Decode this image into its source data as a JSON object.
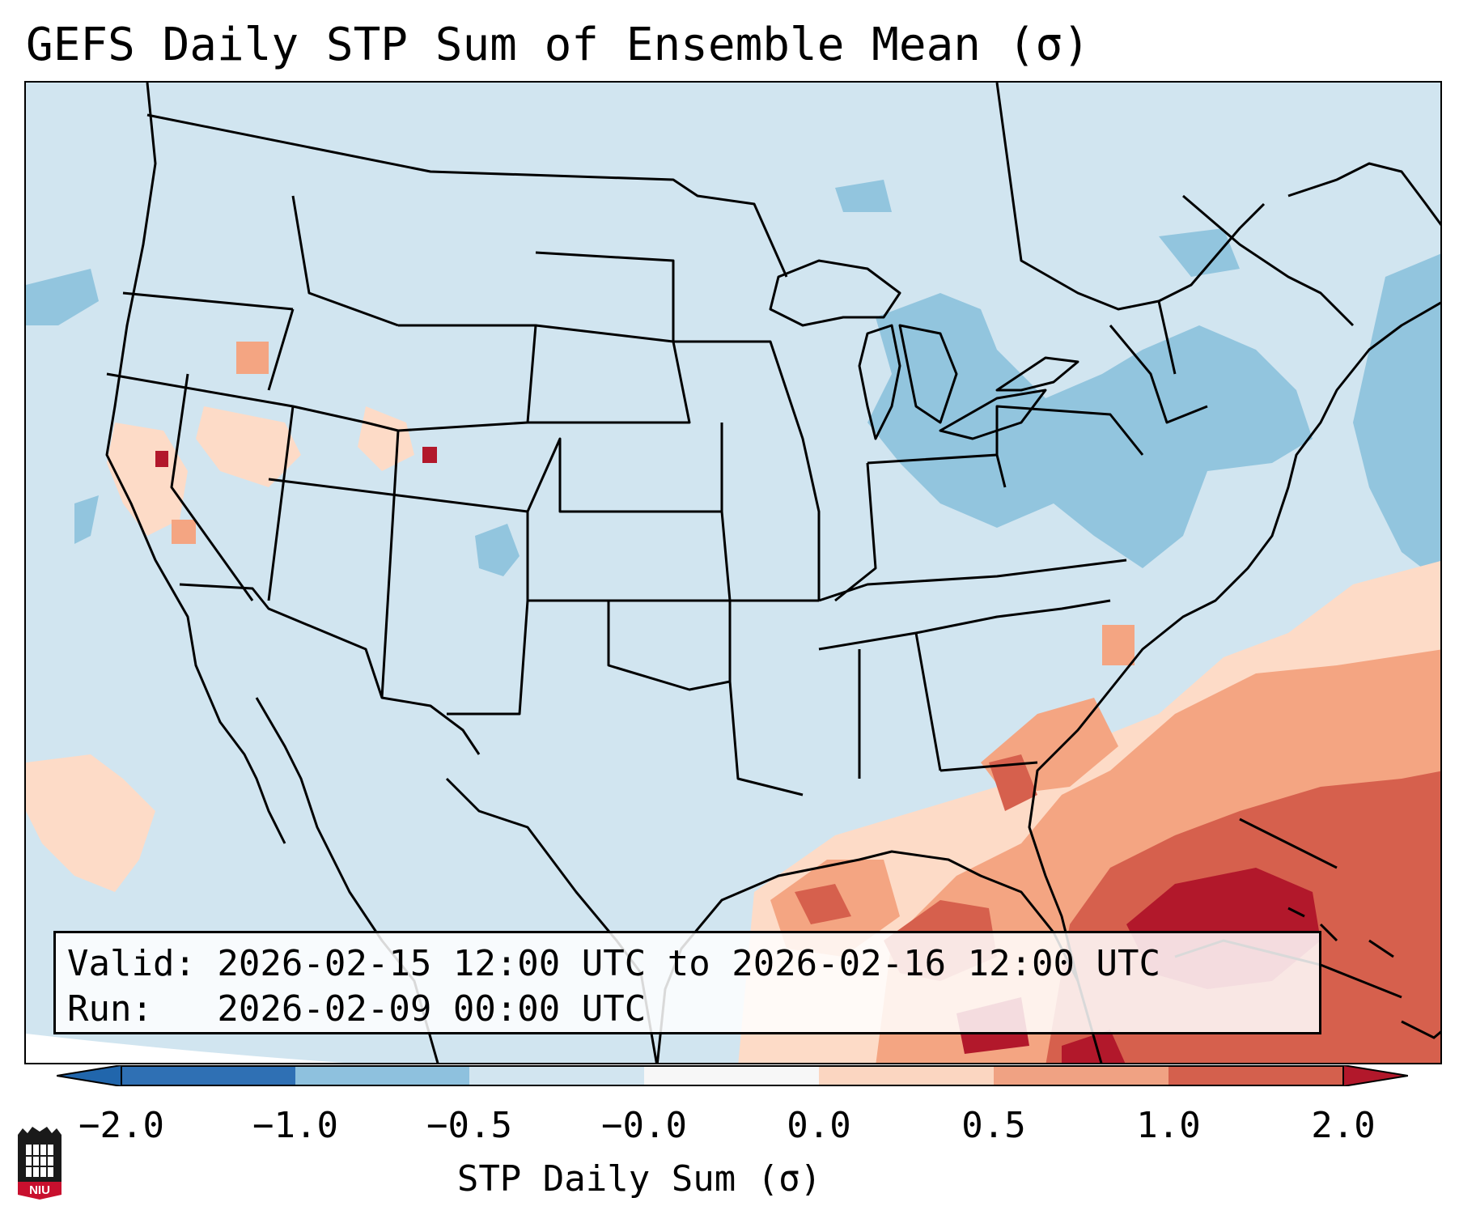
{
  "title": "GEFS Daily STP Sum of Ensemble Mean (σ)",
  "info": {
    "valid_line": "Valid: 2026-02-15 12:00 UTC to 2026-02-16 12:00 UTC",
    "run_line": "Run:   2026-02-09 00:00 UTC"
  },
  "colorbar": {
    "label": "STP Daily Sum (σ)",
    "ticks": [
      "−2.0",
      "−1.0",
      "−0.5",
      "−0.0",
      "0.0",
      "0.5",
      "1.0",
      "2.0"
    ],
    "colors": [
      "#2f70b4",
      "#8ec1de",
      "#d2e5f0",
      "#f7f7f7",
      "#fbd6c1",
      "#f0a283",
      "#d4604d",
      "#b2182b"
    ],
    "extend_low_color": "#2166ac",
    "extend_high_color": "#b2182b"
  },
  "map": {
    "region": "CONUS",
    "background_color": "#d1e5f0",
    "outside_color": "#ffffff"
  },
  "logo": {
    "text": "NIU"
  },
  "chart_data": {
    "type": "heatmap",
    "title": "GEFS Daily STP Sum of Ensemble Mean (σ)",
    "variable": "STP Daily Sum (σ)",
    "levels": [
      -2.0,
      -1.0,
      -0.5,
      -0.0,
      0.0,
      0.5,
      1.0,
      2.0
    ],
    "extend": "both",
    "regions": [
      {
        "area": "Florida, Bahamas, western Atlantic",
        "category": "1.0 to 2.0"
      },
      {
        "area": "Gulf of Mexico, Gulf Coast",
        "category": "0.5 to 1.0"
      },
      {
        "area": "Southeast US coastal Atlantic",
        "category": "0.0 to 0.5"
      },
      {
        "area": "Great Lakes, Northeast",
        "category": "-1.0 to -0.5"
      },
      {
        "area": "Western US scattered",
        "category": "0.0 to 1.0"
      }
    ]
  }
}
